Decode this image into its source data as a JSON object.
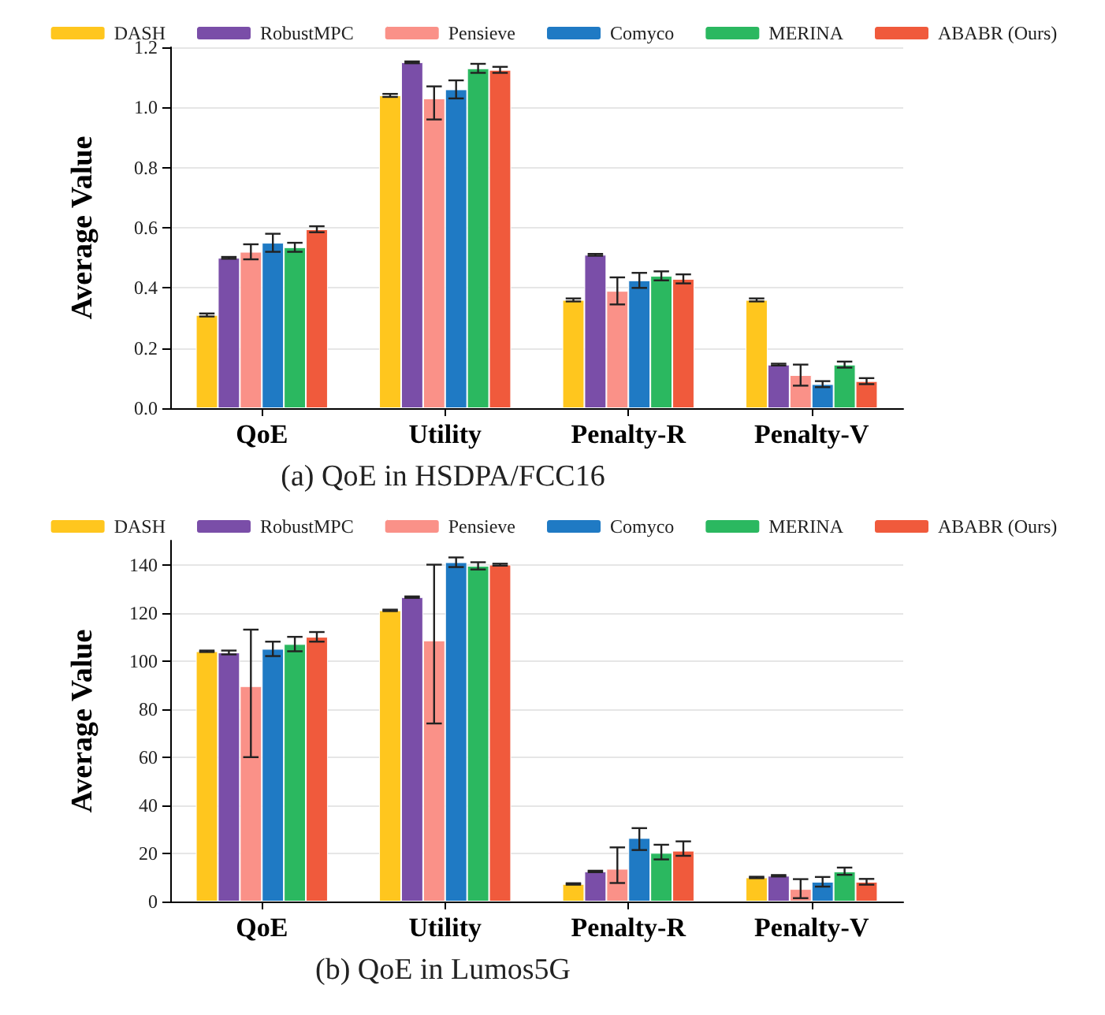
{
  "chart_data": [
    {
      "type": "bar",
      "ylabel": "Average Value",
      "categories": [
        "QoE",
        "Utility",
        "Penalty-R",
        "Penalty-V"
      ],
      "ylim": [
        0,
        1.2
      ],
      "yticks": [
        {
          "value": 0,
          "label": "0.0"
        },
        0.2,
        0.4,
        0.6,
        0.8,
        {
          "value": 1,
          "label": "1.0"
        },
        1.2
      ],
      "grid": "y",
      "legend": "top",
      "annotations": [
        "(a) QoE in HSDPA/FCC16"
      ],
      "series": [
        {
          "name": "DASH",
          "color": "#ffc61e",
          "values": [
            0.31,
            1.04,
            0.36,
            0.36
          ],
          "errors": [
            0.005,
            0.005,
            0.005,
            0.005
          ]
        },
        {
          "name": "RobustMPC",
          "color": "#7a4ea8",
          "values": [
            0.5,
            1.15,
            0.51,
            0.145
          ],
          "errors": [
            0.003,
            0.003,
            0.003,
            0.003
          ]
        },
        {
          "name": "Pensieve",
          "color": "#fa9188",
          "values": [
            0.52,
            1.03,
            0.39,
            0.11
          ],
          "errors": [
            0.025,
            [
              0.96,
              1.07
            ],
            0.045,
            0.035
          ]
        },
        {
          "name": "Comyco",
          "color": "#1f7ac4",
          "values": [
            0.55,
            1.06,
            0.425,
            0.08
          ],
          "errors": [
            0.03,
            0.03,
            0.025,
            0.01
          ]
        },
        {
          "name": "MERINA",
          "color": "#2bb860",
          "values": [
            0.535,
            1.13,
            0.44,
            0.145
          ],
          "errors": [
            0.015,
            0.015,
            0.015,
            0.01
          ]
        },
        {
          "name": "ABABR (Ours)",
          "color": "#f05a3c",
          "values": [
            0.595,
            1.125,
            0.43,
            0.09
          ],
          "errors": [
            0.01,
            0.01,
            0.015,
            0.01
          ]
        }
      ]
    },
    {
      "type": "bar",
      "ylabel": "Average Value",
      "categories": [
        "QoE",
        "Utility",
        "Penalty-R",
        "Penalty-V"
      ],
      "ylim": [
        0,
        150
      ],
      "yticks": [
        0,
        20,
        40,
        60,
        80,
        100,
        120,
        140
      ],
      "grid": "y",
      "legend": "top",
      "annotations": [
        "(b) QoE in Lumos5G"
      ],
      "series": [
        {
          "name": "DASH",
          "color": "#ffc61e",
          "values": [
            104,
            121,
            7.3,
            10
          ],
          "errors": [
            0.3,
            0.3,
            0.3,
            0.3
          ]
        },
        {
          "name": "RobustMPC",
          "color": "#7a4ea8",
          "values": [
            103.5,
            126.5,
            12.5,
            10.7
          ],
          "errors": [
            0.8,
            0.3,
            0.3,
            0.3
          ]
        },
        {
          "name": "Pensieve",
          "color": "#fa9188",
          "values": [
            89.5,
            108.5,
            13.6,
            5.2
          ],
          "errors": [
            [
              60,
              113
            ],
            [
              74,
              140
            ],
            [
              7.7,
              22.5
            ],
            [
              1.4,
              9.3
            ]
          ]
        },
        {
          "name": "Comyco",
          "color": "#1f7ac4",
          "values": [
            105,
            141,
            26.4,
            8.2
          ],
          "errors": [
            3,
            2,
            [
              21.4,
              30.5
            ],
            2
          ]
        },
        {
          "name": "MERINA",
          "color": "#2bb860",
          "values": [
            107,
            139.5,
            20.2,
            12.5
          ],
          "errors": [
            3,
            1.5,
            [
              17.5,
              23.6
            ],
            [
              11.1,
              14.1
            ]
          ]
        },
        {
          "name": "ABABR (Ours)",
          "color": "#f05a3c",
          "values": [
            110,
            140,
            21.1,
            8.2
          ],
          "errors": [
            2,
            0.4,
            [
              19,
              25
            ],
            1.2
          ]
        }
      ]
    }
  ]
}
